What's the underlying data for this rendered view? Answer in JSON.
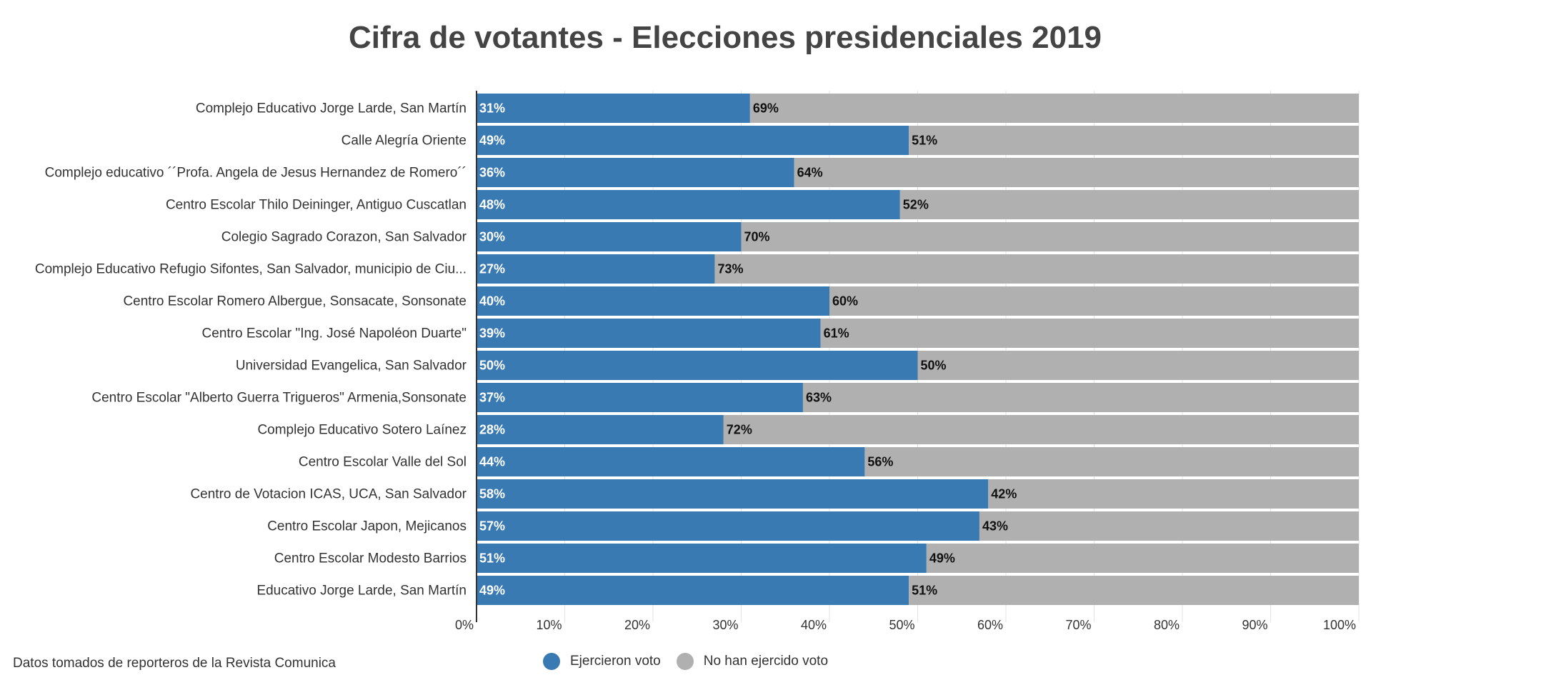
{
  "chart_data": {
    "type": "bar",
    "orientation": "horizontal",
    "stacked": true,
    "title": "Cifra de votantes - Elecciones presidenciales 2019",
    "categories": [
      "Complejo Educativo Jorge Larde, San Martín",
      "Calle Alegría Oriente",
      "Complejo educativo ´´Profa. Angela de Jesus Hernandez de Romero´´",
      "Centro Escolar Thilo Deininger, Antiguo Cuscatlan",
      "Colegio Sagrado Corazon, San Salvador",
      "Complejo Educativo Refugio Sifontes, San Salvador, municipio de Ciu...",
      "Centro Escolar Romero Albergue, Sonsacate, Sonsonate",
      "Centro Escolar \"Ing. José Napoléon Duarte\"",
      "Universidad Evangelica, San Salvador",
      "Centro Escolar \"Alberto Guerra Trigueros\" Armenia,Sonsonate",
      "Complejo Educativo Sotero Laínez",
      "Centro Escolar Valle del Sol",
      "Centro de Votacion ICAS, UCA, San Salvador",
      "Centro Escolar Japon, Mejicanos",
      "Centro Escolar Modesto Barrios",
      "Educativo Jorge Larde, San Martín"
    ],
    "series": [
      {
        "name": "Ejercieron voto",
        "color": "#3a7ab3",
        "values": [
          31,
          49,
          36,
          48,
          30,
          27,
          40,
          39,
          50,
          37,
          28,
          44,
          58,
          57,
          51,
          49
        ]
      },
      {
        "name": "No han ejercido voto",
        "color": "#b0b0b0",
        "values": [
          69,
          51,
          64,
          52,
          70,
          73,
          60,
          61,
          50,
          63,
          72,
          56,
          42,
          43,
          49,
          51
        ]
      }
    ],
    "xlim": [
      0,
      100
    ],
    "xticks": [
      0,
      10,
      20,
      30,
      40,
      50,
      60,
      70,
      80,
      90,
      100
    ],
    "tick_suffix": "%",
    "grid": true,
    "legend_position": "bottom"
  },
  "source_note": "Datos tomados de reporteros de la Revista Comunica"
}
